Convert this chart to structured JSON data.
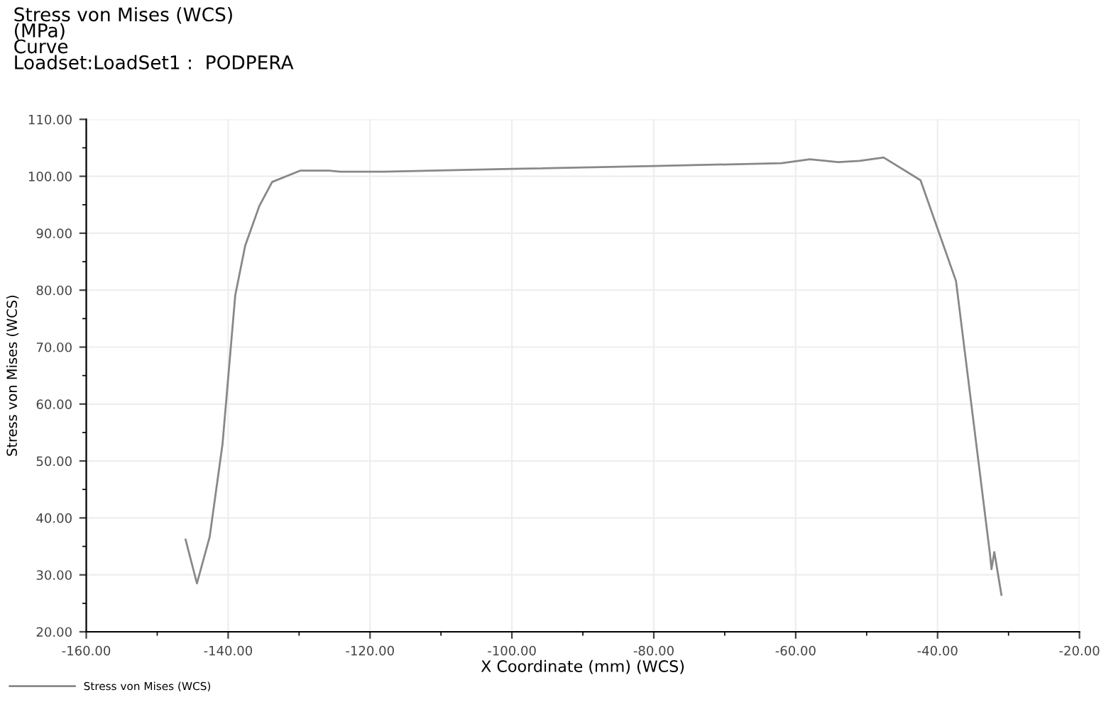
{
  "chart_data": {
    "type": "line",
    "title": "Stress von Mises (WCS)\n(MPa)\nCurve\nLoadset:LoadSet1 :  PODPERA",
    "xlabel": "X Coordinate (mm) (WCS)",
    "ylabel": "Stress von Mises (WCS)",
    "series": [
      {
        "name": "Stress von Mises (WCS)",
        "color": "#888888",
        "x": [
          -146,
          -144.4,
          -142.6,
          -140.8,
          -139,
          -137.6,
          -135.6,
          -133.8,
          -129.8,
          -125.8,
          -124.2,
          -118,
          -100,
          -80,
          -62,
          -58,
          -54,
          -51,
          -47.6,
          -42.4,
          -37.4,
          -32.6,
          -32.4,
          -32,
          -31
        ],
        "values": [
          36.2,
          28.5,
          36.7,
          52.9,
          79.1,
          87.8,
          94.8,
          99.0,
          101,
          101,
          100.8,
          100.8,
          101.3,
          101.8,
          102.3,
          103,
          102.5,
          102.7,
          103.3,
          99.3,
          81.6,
          33.5,
          31,
          34,
          26.5
        ]
      }
    ],
    "xlim": [
      -160,
      -20
    ],
    "ylim": [
      20,
      110
    ],
    "xticks": [
      {
        "value": -160,
        "label": "-160.00"
      },
      {
        "value": -140,
        "label": "-140.00"
      },
      {
        "value": -120,
        "label": "-120.00"
      },
      {
        "value": -100,
        "label": "-100.00"
      },
      {
        "value": -80,
        "label": "-80.00"
      },
      {
        "value": -60,
        "label": "-60.00"
      },
      {
        "value": -40,
        "label": "-40.00"
      },
      {
        "value": -20,
        "label": "-20.00"
      }
    ],
    "yticks": [
      {
        "value": 20,
        "label": "20.00"
      },
      {
        "value": 30,
        "label": "30.00"
      },
      {
        "value": 40,
        "label": "40.00"
      },
      {
        "value": 50,
        "label": "50.00"
      },
      {
        "value": 60,
        "label": "60.00"
      },
      {
        "value": 70,
        "label": "70.00"
      },
      {
        "value": 80,
        "label": "80.00"
      },
      {
        "value": 90,
        "label": "90.00"
      },
      {
        "value": 100,
        "label": "100.00"
      },
      {
        "value": 110,
        "label": "110.00"
      }
    ],
    "grid": true,
    "legend": "bottom left",
    "marker": "none",
    "line_style": "solid"
  }
}
